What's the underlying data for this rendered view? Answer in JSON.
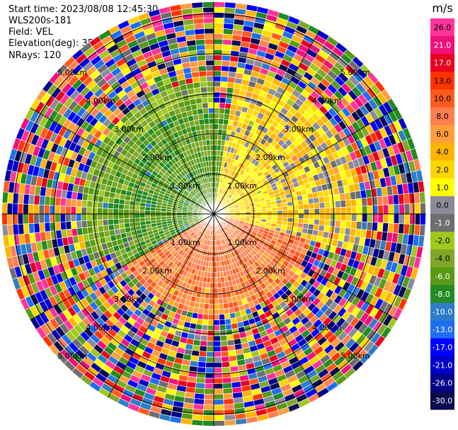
{
  "header": {
    "start_time": "Start time: 2023/08/08 12:45:30",
    "instrument": "WLS200s-181",
    "field": "Field: VEL",
    "elevation": "Elevation(deg): 35.30",
    "nrays": "NRays: 120"
  },
  "chart_data": {
    "type": "heatmap",
    "projection": "polar PPI",
    "rays": 120,
    "range_rings_km": [
      1.0,
      2.0,
      3.0,
      4.0,
      5.0
    ],
    "ring_labels": [
      "1.00km",
      "2.00km",
      "3.00km",
      "4.00km",
      "5.00km"
    ],
    "max_range_km": 5.3,
    "colorbar": {
      "unit": "m/s",
      "ticks": [
        "26.0",
        "21.0",
        "17.0",
        "13.0",
        "10.0",
        "8.0",
        "6.0",
        "4.0",
        "2.0",
        "1.0",
        "0.0",
        "-1.0",
        "-2.0",
        "-4.0",
        "-6.0",
        "-8.0",
        "-10.0",
        "-13.0",
        "-17.0",
        "-21.0",
        "-26.0",
        "-30.0"
      ],
      "colors": [
        "#ff3399",
        "#f0107a",
        "#e8001e",
        "#ff3300",
        "#ff5a1e",
        "#ff7f50",
        "#ff9e3c",
        "#ffb400",
        "#ffd700",
        "#ffff00",
        "#8b8b9a",
        "#6e6e6e",
        "#a0c81e",
        "#80a828",
        "#5a9a14",
        "#228b22",
        "#2e7dc8",
        "#1e6ef0",
        "#0000ff",
        "#0000c8",
        "#00008b",
        "#0a0a50"
      ]
    },
    "field_description_sectors": [
      {
        "from_deg": -120,
        "to_deg": 10,
        "inner_km": 0.0,
        "outer_km": 2.6,
        "velocity": -6.0
      },
      {
        "from_deg": -85,
        "to_deg": -20,
        "inner_km": 0.3,
        "outer_km": 1.9,
        "velocity": -9.0
      },
      {
        "from_deg": 10,
        "to_deg": 105,
        "inner_km": 0.0,
        "outer_km": 3.7,
        "velocity": 2.0
      },
      {
        "from_deg": 105,
        "to_deg": 250,
        "inner_km": 0.0,
        "outer_km": 2.4,
        "velocity": 8.0
      },
      {
        "from_deg": 250,
        "to_deg": 360,
        "inner_km": 0.0,
        "outer_km": 3.3,
        "velocity": -4.0
      }
    ]
  }
}
